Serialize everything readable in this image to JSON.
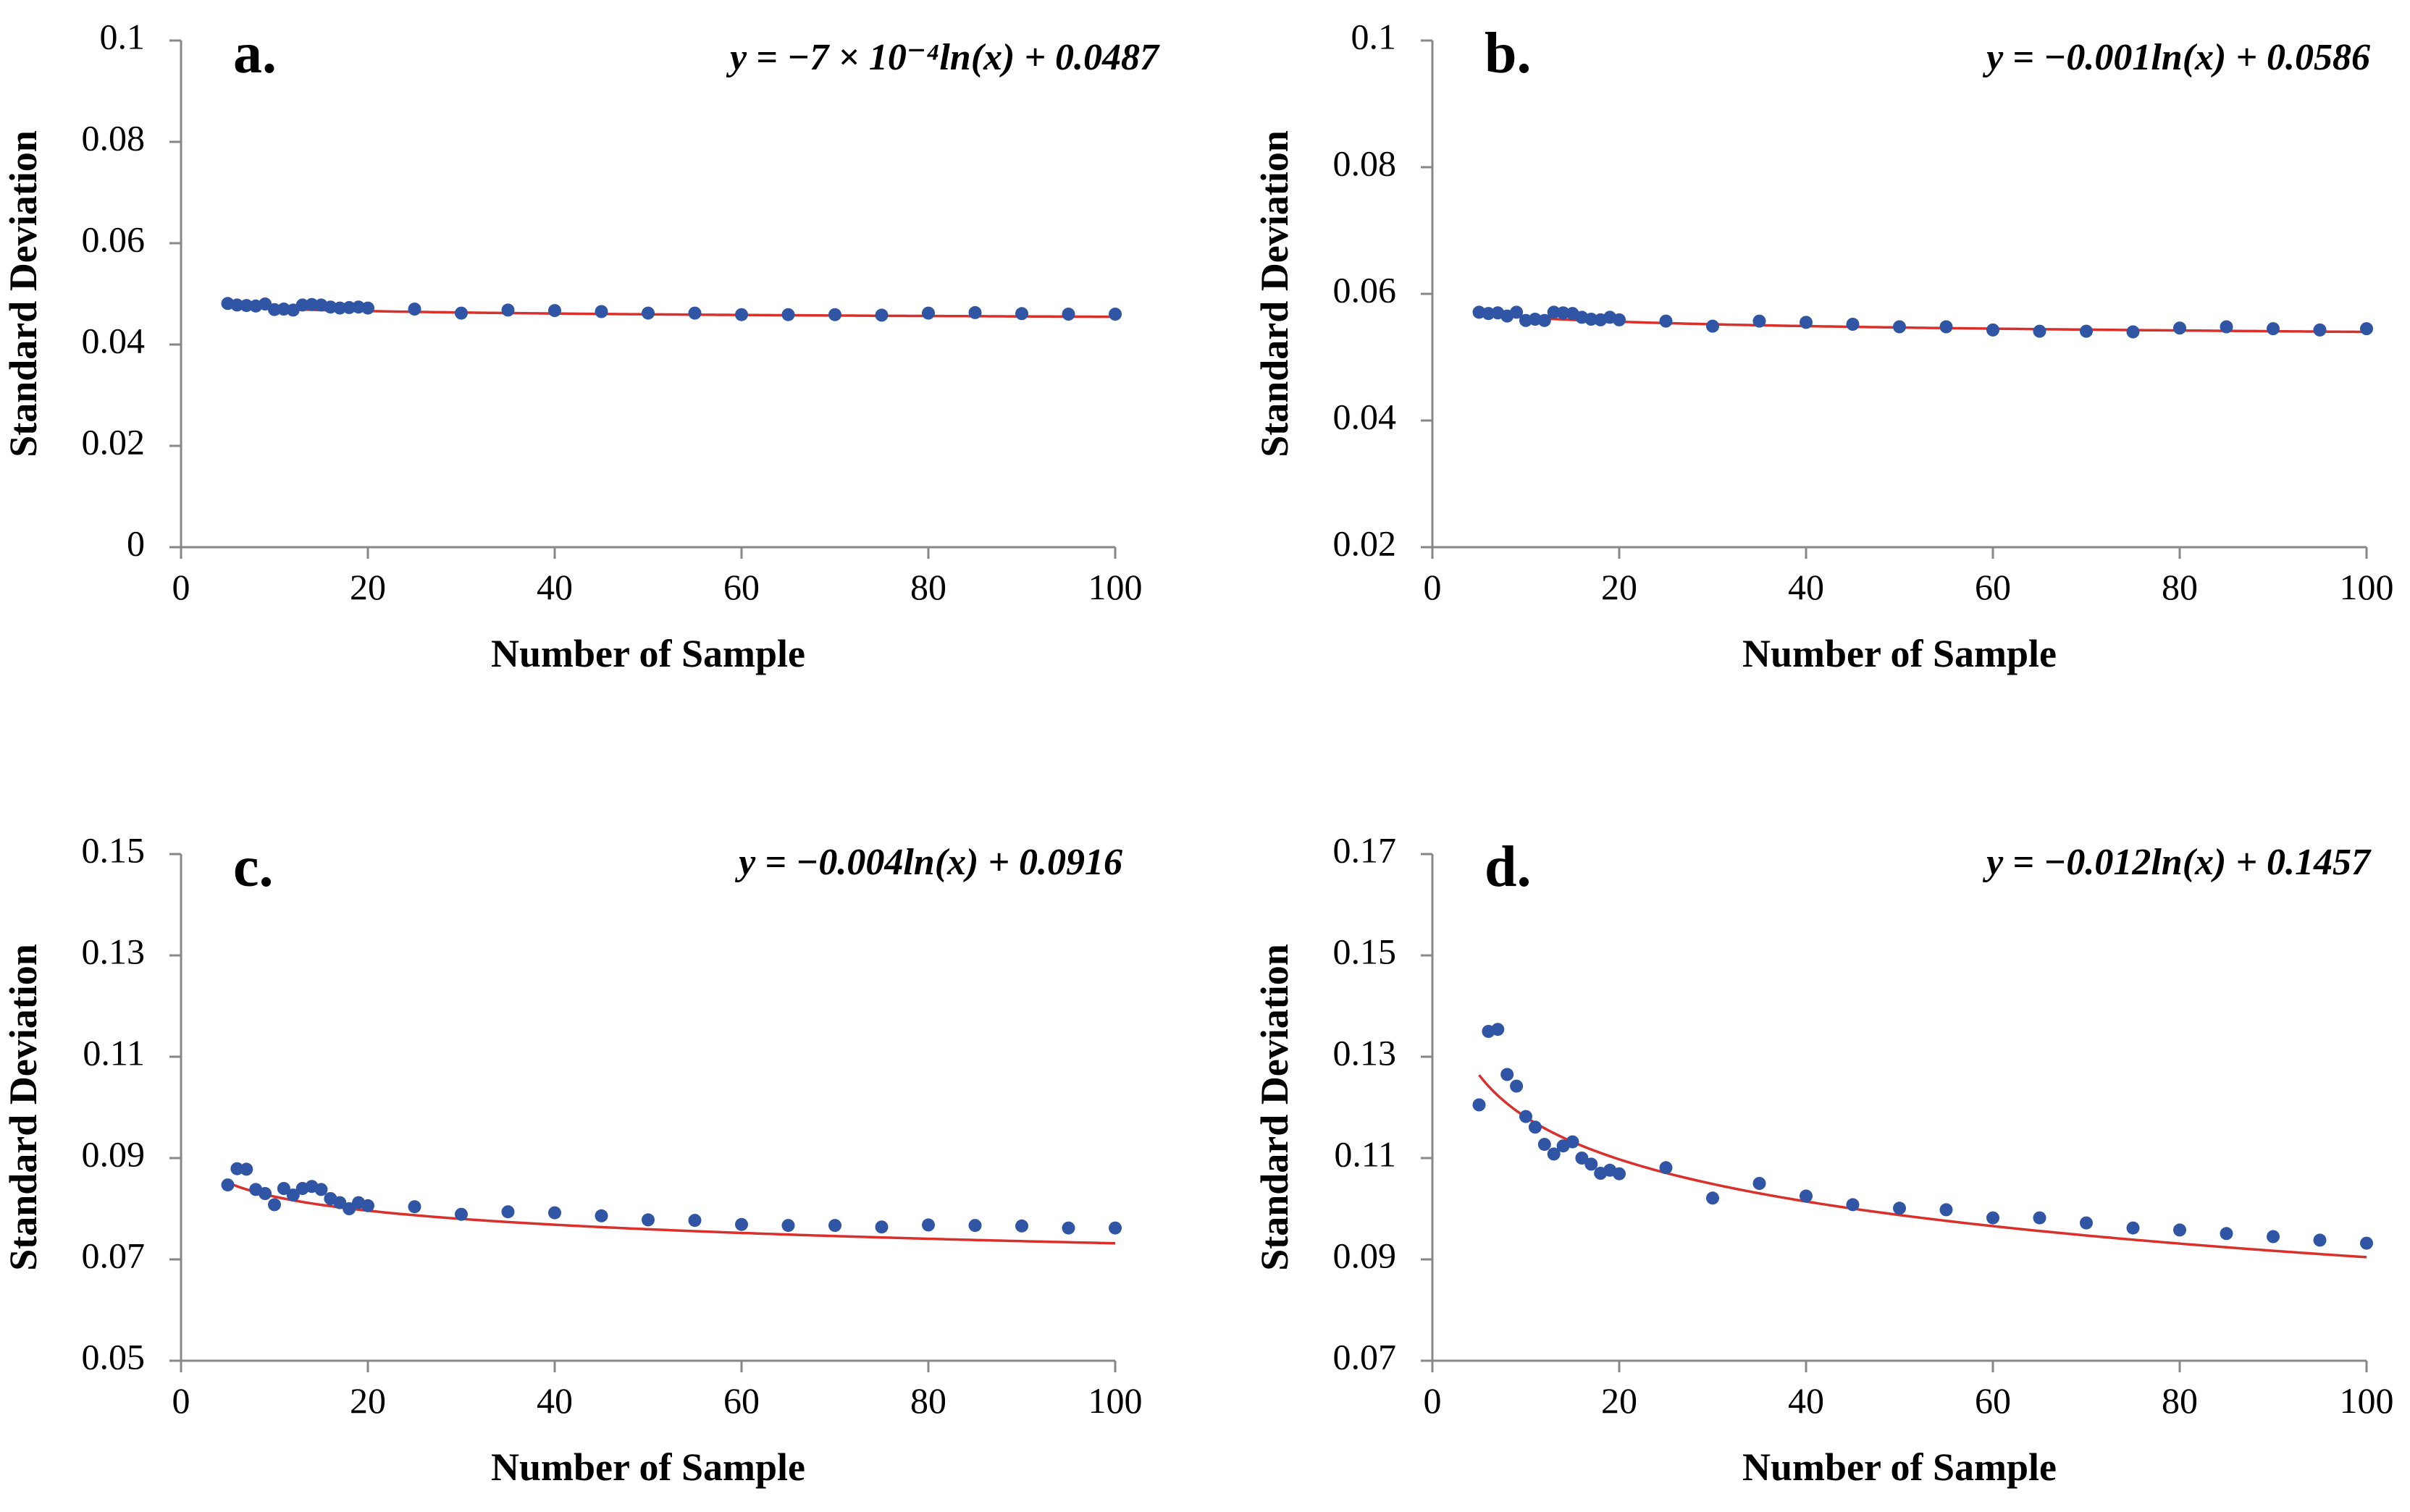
{
  "figure": {
    "panels": [
      {
        "label": "a.",
        "equation": "y = −7 × 10⁻⁴ln(x) + 0.0487"
      },
      {
        "label": "b.",
        "equation": "y = −0.001ln(x) + 0.0586"
      },
      {
        "label": "c.",
        "equation": "y = −0.004ln(x) + 0.0916"
      },
      {
        "label": "d.",
        "equation": "y = −0.012ln(x) + 0.1457"
      }
    ]
  },
  "colors": {
    "points": "#2f55a4",
    "trend": "#d9302c",
    "axis": "#878787"
  },
  "chart_data": [
    {
      "type": "scatter",
      "panel": "a.",
      "title": "",
      "xlabel": "Number of Sample",
      "ylabel": "Standard Deviation",
      "xlim": [
        0,
        100
      ],
      "ylim": [
        0,
        0.1
      ],
      "xticks": [
        0,
        20,
        40,
        60,
        80,
        100
      ],
      "xtick_labels": [
        "0",
        "20",
        "40",
        "60",
        "80",
        "100"
      ],
      "yticks": [
        0,
        0.02,
        0.04,
        0.06,
        0.08,
        0.1
      ],
      "ytick_labels": [
        "0",
        "0.02",
        "0.04",
        "0.06",
        "0.08",
        "0.1"
      ],
      "x": [
        5,
        6,
        7,
        8,
        9,
        10,
        11,
        12,
        13,
        14,
        15,
        16,
        17,
        18,
        19,
        20,
        25,
        30,
        35,
        40,
        45,
        50,
        55,
        60,
        65,
        70,
        75,
        80,
        85,
        90,
        95,
        100
      ],
      "y": [
        0.0481,
        0.0478,
        0.0477,
        0.0476,
        0.048,
        0.0469,
        0.047,
        0.0468,
        0.0478,
        0.0479,
        0.0478,
        0.0474,
        0.0472,
        0.0473,
        0.0474,
        0.0472,
        0.047,
        0.0462,
        0.0468,
        0.0467,
        0.0465,
        0.0462,
        0.0462,
        0.0459,
        0.0459,
        0.0459,
        0.0458,
        0.0462,
        0.0463,
        0.0461,
        0.046,
        0.046
      ],
      "series_name": "Standard Deviation",
      "trendline": {
        "type": "logarithmic",
        "a": -0.0007,
        "b": 0.0487,
        "equation": "y = −7 × 10⁻⁴ln(x) + 0.0487"
      }
    },
    {
      "type": "scatter",
      "panel": "b.",
      "title": "",
      "xlabel": "Number of Sample",
      "ylabel": "Standard Deviation",
      "xlim": [
        0,
        100
      ],
      "ylim": [
        0.02,
        0.1
      ],
      "xticks": [
        0,
        20,
        40,
        60,
        80,
        100
      ],
      "xtick_labels": [
        "0",
        "20",
        "40",
        "60",
        "80",
        "100"
      ],
      "yticks": [
        0.02,
        0.04,
        0.06,
        0.08,
        0.1
      ],
      "ytick_labels": [
        "0.02",
        "0.04",
        "0.06",
        "0.08",
        "0.1"
      ],
      "x": [
        5,
        6,
        7,
        8,
        9,
        10,
        11,
        12,
        13,
        14,
        15,
        16,
        17,
        18,
        19,
        20,
        25,
        30,
        35,
        40,
        45,
        50,
        55,
        60,
        65,
        70,
        75,
        80,
        85,
        90,
        95,
        100
      ],
      "y": [
        0.0571,
        0.0569,
        0.057,
        0.0565,
        0.0571,
        0.0558,
        0.056,
        0.0558,
        0.0571,
        0.057,
        0.0569,
        0.0563,
        0.056,
        0.0559,
        0.0563,
        0.0559,
        0.0557,
        0.0549,
        0.0557,
        0.0555,
        0.0552,
        0.0548,
        0.0548,
        0.0543,
        0.0541,
        0.0541,
        0.054,
        0.0546,
        0.0548,
        0.0545,
        0.0543,
        0.0545
      ],
      "series_name": "Standard Deviation",
      "trendline": {
        "type": "logarithmic",
        "a": -0.001,
        "b": 0.0586,
        "equation": "y = −0.001ln(x) + 0.0586"
      }
    },
    {
      "type": "scatter",
      "panel": "c.",
      "title": "",
      "xlabel": "Number of Sample",
      "ylabel": "Standard Deviation",
      "xlim": [
        0,
        100
      ],
      "ylim": [
        0.05,
        0.15
      ],
      "xticks": [
        0,
        20,
        40,
        60,
        80,
        100
      ],
      "xtick_labels": [
        "0",
        "20",
        "40",
        "60",
        "80",
        "100"
      ],
      "yticks": [
        0.05,
        0.07,
        0.09,
        0.11,
        0.13,
        0.15
      ],
      "ytick_labels": [
        "0.05",
        "0.07",
        "0.09",
        "0.11",
        "0.13",
        "0.15"
      ],
      "x": [
        5,
        6,
        7,
        8,
        9,
        10,
        11,
        12,
        13,
        14,
        15,
        16,
        17,
        18,
        19,
        20,
        25,
        30,
        35,
        40,
        45,
        50,
        55,
        60,
        65,
        70,
        75,
        80,
        85,
        90,
        95,
        100
      ],
      "y": [
        0.0847,
        0.0879,
        0.0878,
        0.0838,
        0.083,
        0.0808,
        0.084,
        0.0827,
        0.084,
        0.0844,
        0.0838,
        0.082,
        0.0812,
        0.08,
        0.0812,
        0.0806,
        0.0804,
        0.0789,
        0.0794,
        0.0792,
        0.0786,
        0.0778,
        0.0777,
        0.0769,
        0.0767,
        0.0767,
        0.0764,
        0.0768,
        0.0767,
        0.0766,
        0.0762,
        0.0762
      ],
      "series_name": "Standard Deviation",
      "trendline": {
        "type": "logarithmic",
        "a": -0.004,
        "b": 0.0916,
        "equation": "y = −0.004ln(x) + 0.0916"
      }
    },
    {
      "type": "scatter",
      "panel": "d.",
      "title": "",
      "xlabel": "Number of Sample",
      "ylabel": "Standard Deviation",
      "xlim": [
        0,
        100
      ],
      "ylim": [
        0.07,
        0.17
      ],
      "xticks": [
        0,
        20,
        40,
        60,
        80,
        100
      ],
      "xtick_labels": [
        "0",
        "20",
        "40",
        "60",
        "80",
        "100"
      ],
      "yticks": [
        0.07,
        0.09,
        0.11,
        0.13,
        0.15,
        0.17
      ],
      "ytick_labels": [
        "0.07",
        "0.09",
        "0.11",
        "0.13",
        "0.15",
        "0.17"
      ],
      "x": [
        5,
        6,
        7,
        8,
        9,
        10,
        11,
        12,
        13,
        14,
        15,
        16,
        17,
        18,
        19,
        20,
        25,
        30,
        35,
        40,
        45,
        50,
        55,
        60,
        65,
        70,
        75,
        80,
        85,
        90,
        95,
        100
      ],
      "y": [
        0.1205,
        0.135,
        0.1354,
        0.1265,
        0.1242,
        0.1182,
        0.1161,
        0.1127,
        0.1108,
        0.1124,
        0.1132,
        0.11,
        0.1088,
        0.107,
        0.1076,
        0.1069,
        0.1081,
        0.1021,
        0.105,
        0.1025,
        0.1008,
        0.1001,
        0.0998,
        0.0982,
        0.0982,
        0.0972,
        0.0962,
        0.0958,
        0.0951,
        0.0945,
        0.0938,
        0.0932
      ],
      "series_name": "Standard Deviation",
      "trendline": {
        "type": "logarithmic",
        "a": -0.012,
        "b": 0.1457,
        "equation": "y = −0.012ln(x) + 0.1457"
      }
    }
  ]
}
